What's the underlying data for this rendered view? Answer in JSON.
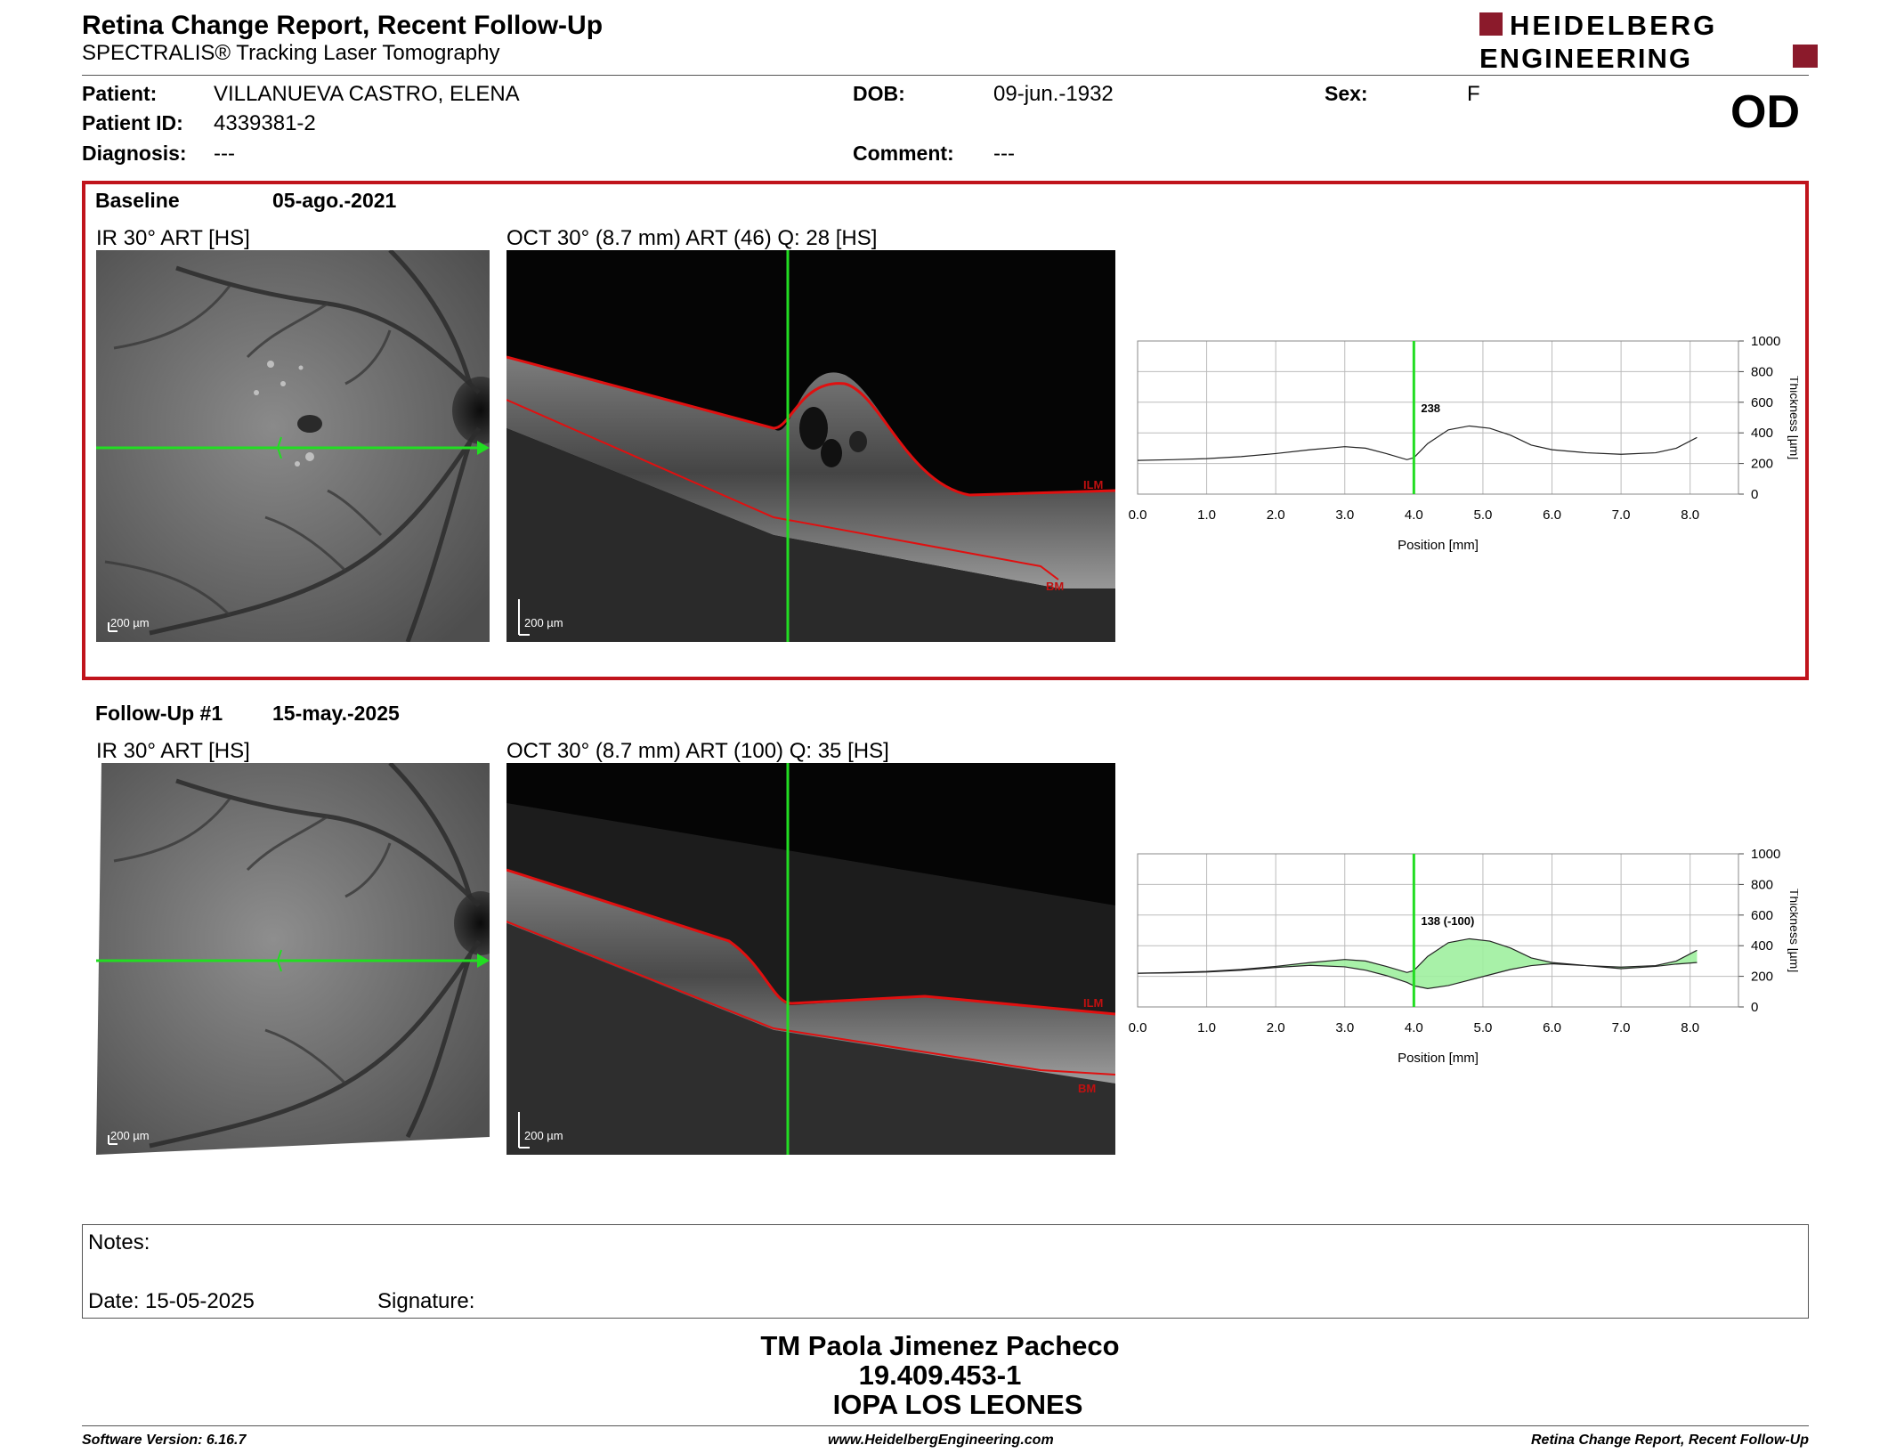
{
  "header": {
    "title": "Retina Change Report, Recent Follow-Up",
    "subtitle": "SPECTRALIS® Tracking Laser Tomography",
    "logo_line1": "HEIDELBERG",
    "logo_line2": "ENGINEERING",
    "eye": "OD"
  },
  "patient": {
    "patient_label": "Patient:",
    "patient_value": "VILLANUEVA CASTRO, ELENA",
    "id_label": "Patient ID:",
    "id_value": "4339381-2",
    "diagnosis_label": "Diagnosis:",
    "diagnosis_value": "---",
    "dob_label": "DOB:",
    "dob_value": "09-jun.-1932",
    "comment_label": "Comment:",
    "comment_value": "---",
    "sex_label": "Sex:",
    "sex_value": "F"
  },
  "colors": {
    "accent_red": "#c0141c",
    "logo_red": "#8b1a2b",
    "scan_green": "#22dd22",
    "layer_red": "#e01010",
    "diff_fill": "#9ef09e"
  },
  "baseline": {
    "label": "Baseline",
    "date": "05-ago.-2021",
    "ir_caption": "IR 30° ART [HS]",
    "oct_caption": "OCT 30° (8.7 mm) ART (46) Q: 28 [HS]",
    "ir_scale": "200 µm",
    "oct_scale": "200 µm",
    "ilm_label": "ILM",
    "bm_label": "BM",
    "marker_label": "238"
  },
  "followup": {
    "label": "Follow-Up #1",
    "date": "15-may.-2025",
    "ir_caption": "IR 30° ART [HS]",
    "oct_caption": "OCT 30° (8.7 mm) ART (100) Q: 35 [HS]",
    "ir_scale": "200 µm",
    "oct_scale": "200 µm",
    "ilm_label": "ILM",
    "bm_label": "BM",
    "marker_label": "138 (-100)"
  },
  "chart_data": [
    {
      "type": "line",
      "xlabel": "Position [mm]",
      "ylabel": "Thickness [µm]",
      "xlim": [
        0,
        8.7
      ],
      "ylim": [
        0,
        1000
      ],
      "x_ticks": [
        "0.0",
        "1.0",
        "2.0",
        "3.0",
        "4.0",
        "5.0",
        "6.0",
        "7.0",
        "8.0"
      ],
      "y_ticks": [
        "1000",
        "800",
        "600",
        "400",
        "200",
        "0"
      ],
      "marker_x": 4.0,
      "grid": true,
      "series": [
        {
          "x": [
            0,
            0.5,
            1,
            1.5,
            2,
            2.5,
            3,
            3.3,
            3.6,
            3.9,
            4.0,
            4.2,
            4.5,
            4.8,
            5.1,
            5.4,
            5.7,
            6,
            6.5,
            7,
            7.5,
            7.8,
            8.1
          ],
          "values": [
            220,
            225,
            232,
            245,
            265,
            290,
            310,
            300,
            265,
            225,
            238,
            330,
            420,
            445,
            430,
            385,
            320,
            290,
            270,
            260,
            270,
            300,
            370
          ]
        }
      ]
    },
    {
      "type": "line",
      "xlabel": "Position [mm]",
      "ylabel": "Thickness [µm]",
      "xlim": [
        0,
        8.7
      ],
      "ylim": [
        0,
        1000
      ],
      "x_ticks": [
        "0.0",
        "1.0",
        "2.0",
        "3.0",
        "4.0",
        "5.0",
        "6.0",
        "7.0",
        "8.0"
      ],
      "y_ticks": [
        "1000",
        "800",
        "600",
        "400",
        "200",
        "0"
      ],
      "marker_x": 4.0,
      "grid": true,
      "series": [
        {
          "x": [
            0,
            0.5,
            1,
            1.5,
            2,
            2.5,
            3,
            3.3,
            3.6,
            3.9,
            4.0,
            4.2,
            4.5,
            4.8,
            5.1,
            5.4,
            5.7,
            6,
            6.5,
            7,
            7.5,
            7.8,
            8.1
          ],
          "values": [
            220,
            225,
            232,
            245,
            265,
            290,
            310,
            300,
            265,
            225,
            238,
            330,
            420,
            445,
            430,
            385,
            320,
            290,
            270,
            260,
            270,
            300,
            370
          ]
        },
        {
          "x": [
            0,
            0.5,
            1,
            1.5,
            2,
            2.5,
            3,
            3.3,
            3.6,
            3.9,
            4.0,
            4.2,
            4.5,
            4.8,
            5.1,
            5.4,
            5.7,
            6,
            6.5,
            7,
            7.5,
            7.8,
            8.1
          ],
          "values": [
            220,
            222,
            228,
            240,
            258,
            272,
            262,
            240,
            205,
            160,
            138,
            120,
            140,
            175,
            210,
            245,
            270,
            282,
            270,
            250,
            265,
            280,
            290
          ]
        }
      ]
    }
  ],
  "notes": {
    "notes_label": "Notes:",
    "date_label": "Date: 15-05-2025",
    "signature_label": "Signature:"
  },
  "signature": {
    "name": "TM Paola Jimenez Pacheco",
    "id": "19.409.453-1",
    "org": "IOPA LOS LEONES"
  },
  "footer": {
    "software": "Software Version: 6.16.7",
    "website": "www.HeidelbergEngineering.com",
    "report": "Retina Change Report, Recent Follow-Up"
  }
}
